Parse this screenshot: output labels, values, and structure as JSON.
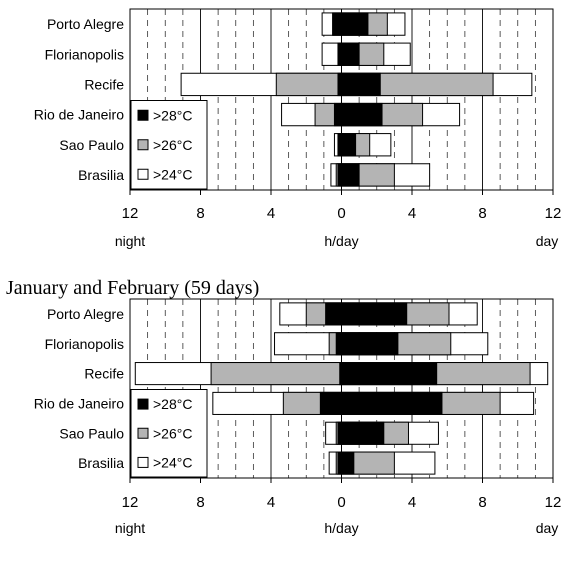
{
  "caption": "January and February (59 days)",
  "chart_data": [
    {
      "type": "bar",
      "orientation": "horizontal",
      "stacked": true,
      "categories": [
        "Porto Alegre",
        "Florianopolis",
        "Recife",
        "Rio de Janeiro",
        "Sao Paulo",
        "Brasilia"
      ],
      "series": [
        {
          "name": ">28°C",
          "color": "#000000",
          "night": [
            0.5,
            0.2,
            0.2,
            0.4,
            0.2,
            0.2
          ],
          "day": [
            1.5,
            1.0,
            2.2,
            2.3,
            0.8,
            1.0
          ]
        },
        {
          "name": ">26°C",
          "color": "#b4b4b4",
          "night": [
            0.5,
            0.2,
            3.7,
            1.5,
            0.2,
            0.3
          ],
          "day": [
            2.6,
            2.4,
            8.6,
            4.6,
            1.6,
            3.0
          ]
        },
        {
          "name": ">24°C",
          "color": "#ffffff",
          "night": [
            1.1,
            1.1,
            9.1,
            3.4,
            0.4,
            0.6
          ],
          "day": [
            3.6,
            3.9,
            10.8,
            6.7,
            2.8,
            5.0
          ]
        }
      ],
      "xlim": [
        -12,
        12
      ],
      "xticks": [
        -12,
        -8,
        -4,
        0,
        4,
        8,
        12
      ],
      "xticklabels": [
        "12",
        "8",
        "4",
        "0",
        "4",
        "8",
        "12"
      ],
      "xlabel": "h/day",
      "xlabel_left": "night",
      "xlabel_right": "day",
      "legend_placement": "bottom-left",
      "grid": "vertical"
    },
    {
      "type": "bar",
      "orientation": "horizontal",
      "stacked": true,
      "categories": [
        "Porto Alegre",
        "Florianopolis",
        "Recife",
        "Rio de Janeiro",
        "Sao Paulo",
        "Brasilia"
      ],
      "series": [
        {
          "name": ">28°C",
          "color": "#000000",
          "night": [
            0.9,
            0.3,
            0.1,
            1.2,
            0.2,
            0.2
          ],
          "day": [
            3.7,
            3.2,
            5.4,
            5.7,
            2.4,
            0.7
          ]
        },
        {
          "name": ">26°C",
          "color": "#b4b4b4",
          "night": [
            2.0,
            0.7,
            7.4,
            3.3,
            0.3,
            0.3
          ],
          "day": [
            6.1,
            6.2,
            10.7,
            9.0,
            3.8,
            3.0
          ]
        },
        {
          "name": ">24°C",
          "color": "#ffffff",
          "night": [
            3.5,
            3.8,
            11.7,
            7.3,
            0.9,
            0.7
          ],
          "day": [
            7.7,
            8.3,
            11.7,
            10.9,
            5.5,
            5.3
          ]
        }
      ],
      "xlim": [
        -12,
        12
      ],
      "xticks": [
        -12,
        -8,
        -4,
        0,
        4,
        8,
        12
      ],
      "xticklabels": [
        "12",
        "8",
        "4",
        "0",
        "4",
        "8",
        "12"
      ],
      "xlabel": "h/day",
      "xlabel_left": "night",
      "xlabel_right": "day",
      "legend_placement": "bottom-left",
      "grid": "vertical"
    }
  ]
}
